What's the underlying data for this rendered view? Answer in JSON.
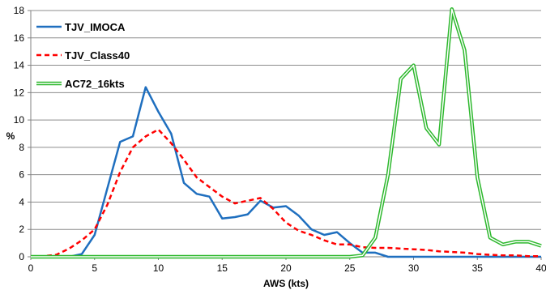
{
  "chart_data": {
    "type": "line",
    "xlabel": "AWS (kts)",
    "ylabel": "%",
    "xlim": [
      0,
      40
    ],
    "ylim": [
      0,
      18
    ],
    "x_ticks": [
      0,
      5,
      10,
      15,
      20,
      25,
      30,
      35,
      40
    ],
    "y_ticks": [
      0,
      2,
      4,
      6,
      8,
      10,
      12,
      14,
      16,
      18
    ],
    "grid": "horizontal",
    "legend_position": "top-left",
    "series": [
      {
        "name": "TJV_IMOCA",
        "color": "#1f6fbf",
        "style": "solid",
        "x": [
          0,
          1,
          2,
          3,
          4,
          5,
          6,
          7,
          8,
          9,
          10,
          11,
          12,
          13,
          14,
          15,
          16,
          17,
          18,
          19,
          20,
          21,
          22,
          23,
          24,
          25,
          26,
          27,
          28,
          29,
          30,
          31,
          32,
          33,
          34,
          35,
          36,
          37,
          38,
          39,
          40
        ],
        "y": [
          0,
          0,
          0,
          0,
          0.2,
          1.6,
          5.0,
          8.4,
          8.8,
          12.4,
          10.6,
          9.0,
          5.4,
          4.6,
          4.4,
          2.8,
          2.9,
          3.1,
          4.1,
          3.6,
          3.7,
          3.0,
          2.0,
          1.6,
          1.8,
          1.0,
          0.3,
          0.3,
          0,
          0,
          0,
          0,
          0,
          0,
          0,
          0,
          0,
          0,
          0,
          0,
          0
        ]
      },
      {
        "name": "TJV_Class40",
        "color": "#ff0000",
        "style": "dashed",
        "x": [
          0,
          1,
          2,
          3,
          4,
          5,
          6,
          7,
          8,
          9,
          10,
          11,
          12,
          13,
          14,
          15,
          16,
          17,
          18,
          19,
          20,
          21,
          22,
          23,
          24,
          25,
          26,
          27,
          28,
          29,
          30,
          31,
          32,
          33,
          34,
          35,
          36,
          37,
          38,
          39,
          40
        ],
        "y": [
          0,
          0.05,
          0.15,
          0.6,
          1.2,
          2.0,
          3.8,
          6.2,
          8.0,
          8.8,
          9.3,
          8.3,
          7.1,
          5.8,
          5.1,
          4.4,
          3.9,
          4.1,
          4.3,
          3.5,
          2.5,
          1.9,
          1.6,
          1.2,
          0.9,
          0.9,
          0.7,
          0.65,
          0.65,
          0.6,
          0.55,
          0.5,
          0.4,
          0.35,
          0.3,
          0.2,
          0.15,
          0.1,
          0.1,
          0.05,
          0.05
        ]
      },
      {
        "name": "AC72_16kts",
        "color": "#2db82d",
        "style": "double",
        "x": [
          0,
          1,
          2,
          3,
          4,
          5,
          6,
          7,
          8,
          9,
          10,
          11,
          12,
          13,
          14,
          15,
          16,
          17,
          18,
          19,
          20,
          21,
          22,
          23,
          24,
          25,
          26,
          27,
          28,
          29,
          30,
          31,
          32,
          33,
          34,
          35,
          36,
          37,
          38,
          39,
          40
        ],
        "y": [
          0,
          0,
          0,
          0,
          0,
          0,
          0,
          0,
          0,
          0,
          0,
          0,
          0,
          0,
          0,
          0,
          0,
          0,
          0,
          0,
          0,
          0,
          0,
          0,
          0,
          0,
          0.1,
          1.4,
          6.0,
          13.0,
          14.0,
          9.4,
          8.2,
          18.1,
          15.1,
          5.8,
          1.4,
          0.9,
          1.1,
          1.1,
          0.8
        ]
      }
    ]
  }
}
